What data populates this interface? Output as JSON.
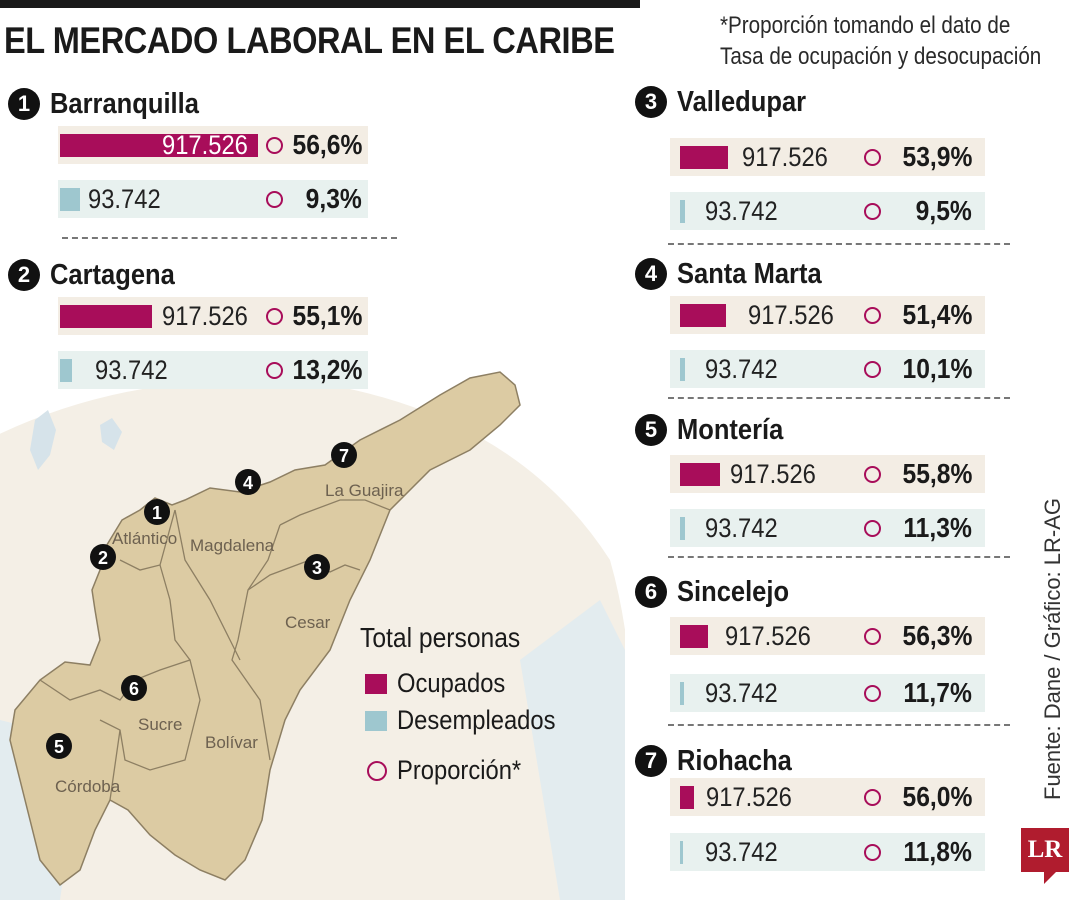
{
  "header": {
    "title": "EL MERCADO LABORAL EN EL CARIBE",
    "note_line1": "*Proporción tomando el dato de",
    "note_line2": "Tasa de ocupación y desocupación"
  },
  "colors": {
    "ocupados": "#a80d5a",
    "desempleados": "#9ec7cf",
    "map_land": "#dccba3"
  },
  "chart_data": {
    "type": "bar",
    "series_names": [
      "Ocupados",
      "Desempleados",
      "Proporción*"
    ],
    "cities": [
      {
        "rank": "1",
        "name": "Barranquilla",
        "ocupados": "917.526",
        "ocupados_pct": "56,6%",
        "desempleados": "93.742",
        "desempleados_pct": "9,3%",
        "ocupados_value": 917526,
        "desempleados_value": 93742
      },
      {
        "rank": "2",
        "name": "Cartagena",
        "ocupados": "917.526",
        "ocupados_pct": "55,1%",
        "desempleados": "93.742",
        "desempleados_pct": "13,2%",
        "ocupados_value": 917526,
        "desempleados_value": 93742
      },
      {
        "rank": "3",
        "name": "Valledupar",
        "ocupados": "917.526",
        "ocupados_pct": "53,9%",
        "desempleados": "93.742",
        "desempleados_pct": "9,5%",
        "ocupados_value": 917526,
        "desempleados_value": 93742
      },
      {
        "rank": "4",
        "name": "Santa Marta",
        "ocupados": "917.526",
        "ocupados_pct": "51,4%",
        "desempleados": "93.742",
        "desempleados_pct": "10,1%",
        "ocupados_value": 917526,
        "desempleados_value": 93742
      },
      {
        "rank": "5",
        "name": "Montería",
        "ocupados": "917.526",
        "ocupados_pct": "55,8%",
        "desempleados": "93.742",
        "desempleados_pct": "11,3%",
        "ocupados_value": 917526,
        "desempleados_value": 93742
      },
      {
        "rank": "6",
        "name": "Sincelejo",
        "ocupados": "917.526",
        "ocupados_pct": "56,3%",
        "desempleados": "93.742",
        "desempleados_pct": "11,7%",
        "ocupados_value": 917526,
        "desempleados_value": 93742
      },
      {
        "rank": "7",
        "name": "Riohacha",
        "ocupados": "917.526",
        "ocupados_pct": "56,0%",
        "desempleados": "93.742",
        "desempleados_pct": "11,8%",
        "ocupados_value": 917526,
        "desempleados_value": 93742
      }
    ]
  },
  "map": {
    "departments": [
      "Atlántico",
      "Magdalena",
      "La Guajira",
      "Cesar",
      "Sucre",
      "Bolívar",
      "Córdoba"
    ],
    "markers": [
      "1",
      "2",
      "3",
      "4",
      "5",
      "6",
      "7"
    ]
  },
  "legend": {
    "title": "Total personas",
    "ocupados": "Ocupados",
    "desempleados": "Desempleados",
    "proporcion": "Proporción*"
  },
  "footer": {
    "source": "Fuente: Dane / Gráfico: LR-AG",
    "logo": "LR"
  }
}
